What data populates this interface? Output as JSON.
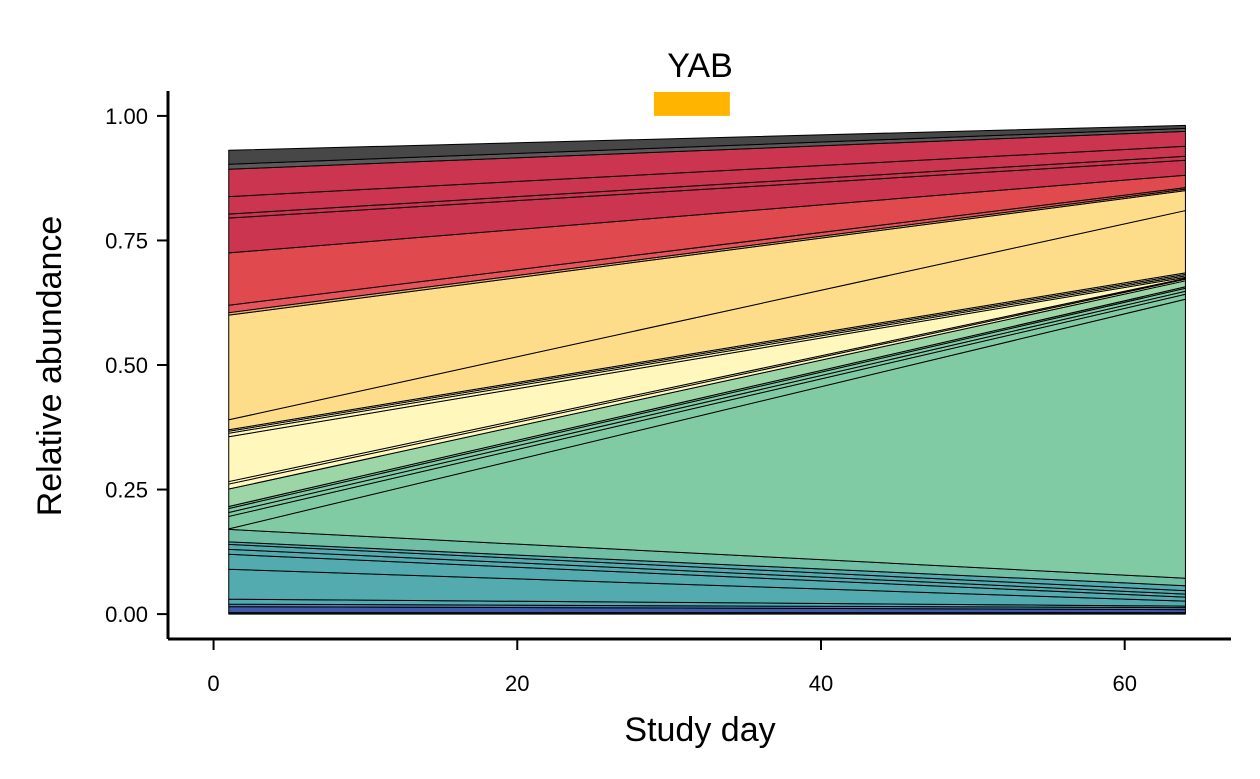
{
  "chart_data": {
    "type": "area",
    "stacked": true,
    "title": "YAB",
    "xlabel": "Study day",
    "ylabel": "Relative abundance",
    "xlim": [
      -3,
      67
    ],
    "ylim": [
      -0.05,
      1.05
    ],
    "xticks": [
      0,
      20,
      40,
      60
    ],
    "yticks": [
      0.0,
      0.25,
      0.5,
      0.75,
      1.0
    ],
    "ytick_labels": [
      "0.00",
      "0.25",
      "0.50",
      "0.75",
      "1.00"
    ],
    "grid": false,
    "legend": "none",
    "x": [
      1,
      64
    ],
    "treatment_bar": {
      "x_start": 29,
      "x_end": 34,
      "color": "#FFB400"
    },
    "series": [
      {
        "values": [
          0.003,
          0.003
        ],
        "color": "#1a1a1a"
      },
      {
        "values": [
          0.012,
          0.006
        ],
        "color": "#3F5AA8"
      },
      {
        "values": [
          0.005,
          0.004
        ],
        "color": "#4A83B8"
      },
      {
        "values": [
          0.01,
          0.003
        ],
        "color": "#53AAAF"
      },
      {
        "values": [
          0.06,
          0.01
        ],
        "color": "#53AAAF"
      },
      {
        "values": [
          0.03,
          0.008
        ],
        "color": "#53AAAF"
      },
      {
        "values": [
          0.01,
          0.006
        ],
        "color": "#53AAAF"
      },
      {
        "values": [
          0.01,
          0.007
        ],
        "color": "#53AAAF"
      },
      {
        "values": [
          0.005,
          0.01
        ],
        "color": "#53AAAF"
      },
      {
        "values": [
          0.025,
          0.015
        ],
        "color": "#70BFA5"
      },
      {
        "values": [
          0.001,
          0.56
        ],
        "color": "#81CBA4"
      },
      {
        "values": [
          0.025,
          0.01
        ],
        "color": "#81CBA4"
      },
      {
        "values": [
          0.008,
          0.006
        ],
        "color": "#81CBA4"
      },
      {
        "values": [
          0.008,
          0.006
        ],
        "color": "#81CBA4"
      },
      {
        "values": [
          0.004,
          0.003
        ],
        "color": "#81CBA4"
      },
      {
        "values": [
          0.035,
          0.012
        ],
        "color": "#9DD6A6"
      },
      {
        "values": [
          0.01,
          0.003
        ],
        "color": "#FFF7BC"
      },
      {
        "values": [
          0.005,
          0.002
        ],
        "color": "#FFF7BC"
      },
      {
        "values": [
          0.09,
          0.002
        ],
        "color": "#FFF7BC"
      },
      {
        "values": [
          0.007,
          0.003
        ],
        "color": "#FFF7BC"
      },
      {
        "values": [
          0.004,
          0.003
        ],
        "color": "#FFF7BC"
      },
      {
        "values": [
          0.003,
          0.003
        ],
        "color": "#FFF7BC"
      },
      {
        "values": [
          0.02,
          0.125
        ],
        "color": "#FDDC8A"
      },
      {
        "values": [
          0.21,
          0.04
        ],
        "color": "#FDDC8A"
      },
      {
        "values": [
          0.005,
          0.003
        ],
        "color": "#E8AE6E"
      },
      {
        "values": [
          0.015,
          0.003
        ],
        "color": "#E4545A"
      },
      {
        "values": [
          0.105,
          0.025
        ],
        "color": "#E04A4F"
      },
      {
        "values": [
          0.07,
          0.03
        ],
        "color": "#CC3550"
      },
      {
        "values": [
          0.008,
          0.008
        ],
        "color": "#CC3550"
      },
      {
        "values": [
          0.035,
          0.02
        ],
        "color": "#CC3550"
      },
      {
        "values": [
          0.055,
          0.03
        ],
        "color": "#CC3550"
      },
      {
        "values": [
          0.01,
          0.006
        ],
        "color": "#5A5A5A"
      },
      {
        "values": [
          0.028,
          0.006
        ],
        "color": "#474747"
      }
    ]
  }
}
